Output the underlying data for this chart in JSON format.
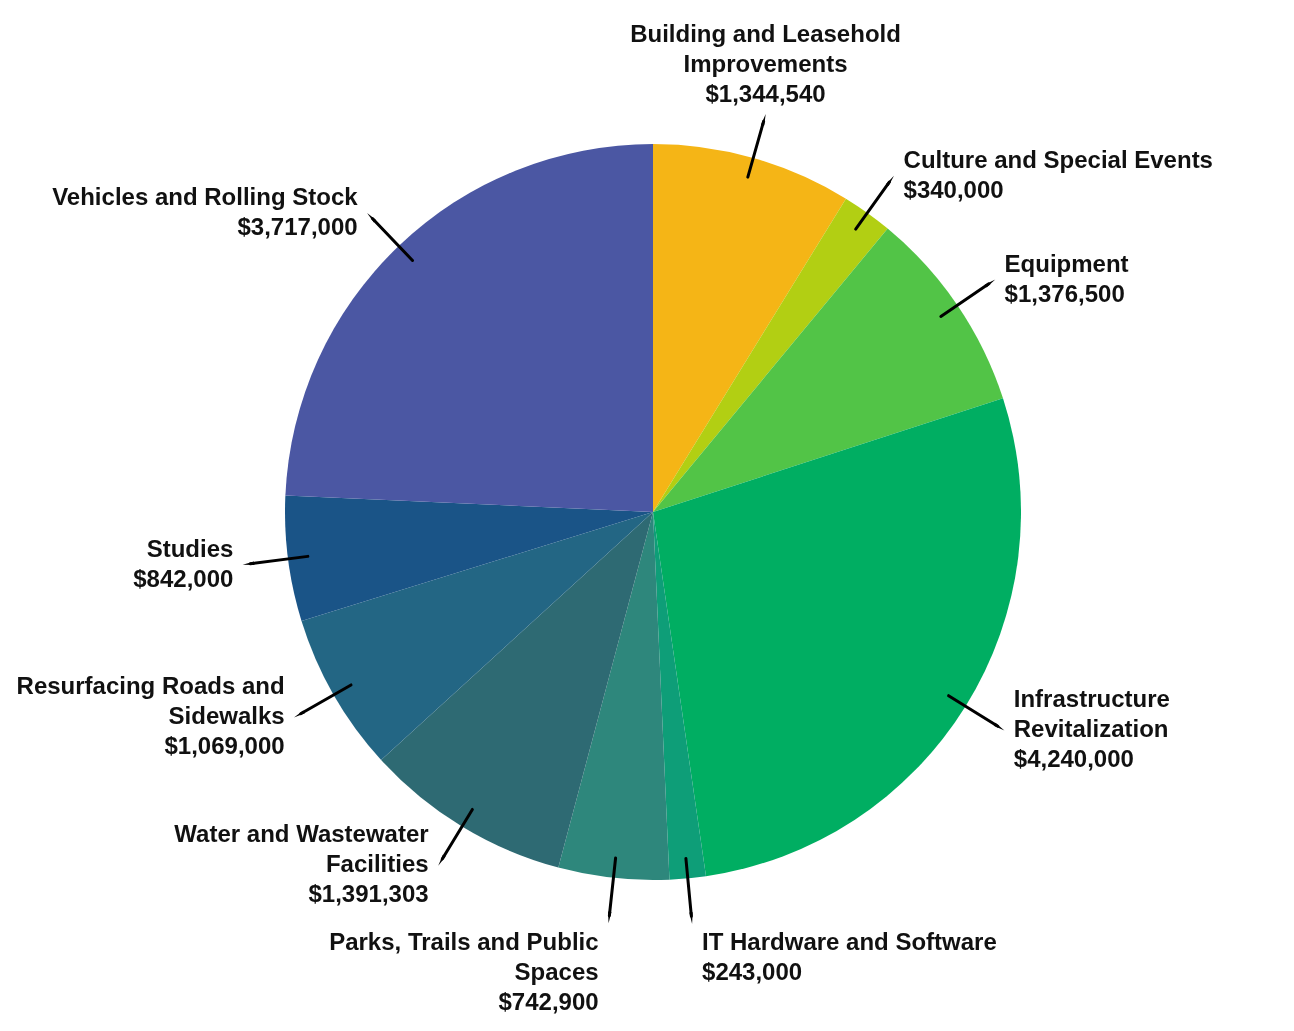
{
  "chart_data": {
    "type": "pie",
    "categories": [
      "Building and Leasehold Improvements",
      "Culture and Special Events",
      "Equipment",
      "Infrastructure Revitalization",
      "IT Hardware and Software",
      "Parks, Trails and Public Spaces",
      "Water and Wastewater Facilities",
      "Resurfacing Roads and Sidewalks",
      "Studies",
      "Vehicles and Rolling Stock"
    ],
    "values": [
      1344540,
      340000,
      1376500,
      4240000,
      243000,
      742900,
      1391303,
      1069000,
      842000,
      3717000
    ],
    "colors": [
      "#f5b516",
      "#b2cf13",
      "#52c447",
      "#00ae62",
      "#0e9e78",
      "#2e877c",
      "#2e6a73",
      "#236684",
      "#1a5487",
      "#4b57a3"
    ],
    "value_labels": [
      "$1,344,540",
      "$340,000",
      "$1,376,500",
      "$4,240,000",
      "$243,000",
      "$742,900",
      "$1,391,303",
      "$1,069,000",
      "$842,000",
      "$3,717,000"
    ]
  }
}
